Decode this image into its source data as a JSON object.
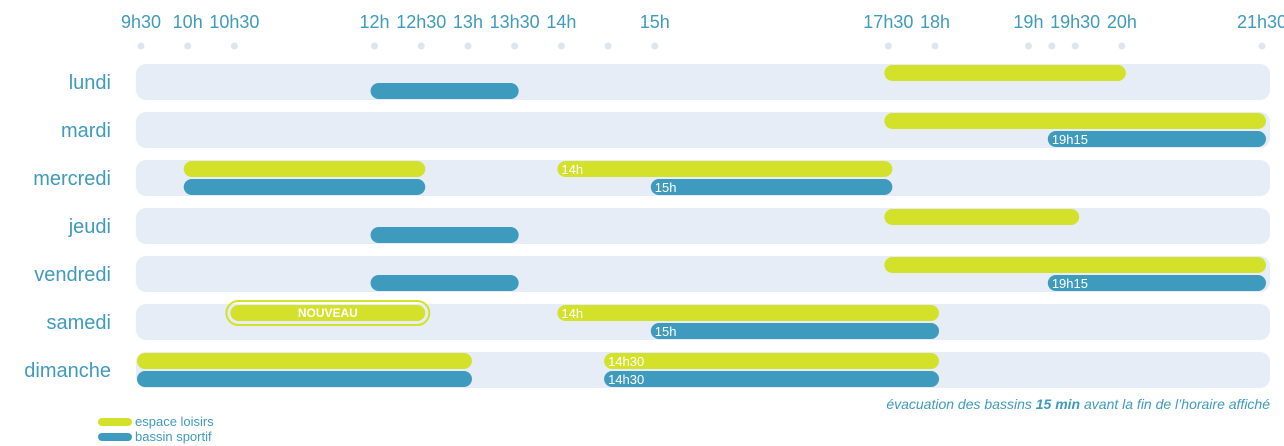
{
  "chart_data": {
    "type": "timeline",
    "x_ticks": [
      "9h30",
      "10h",
      "10h30",
      "12h",
      "12h30",
      "13h",
      "13h30",
      "14h",
      "15h",
      "17h30",
      "18h",
      "19h",
      "19h30",
      "20h",
      "21h30"
    ],
    "x_range": [
      "9h30",
      "21h30"
    ],
    "days": [
      "lundi",
      "mardi",
      "mercredi",
      "jeudi",
      "vendredi",
      "samedi",
      "dimanche"
    ],
    "series": [
      {
        "name": "espace loisirs",
        "color": "#d4e12b"
      },
      {
        "name": "bassin sportif",
        "color": "#3e9bbd"
      }
    ],
    "bars": [
      {
        "day": 0,
        "series": 0,
        "start": "17h30",
        "end": "20h"
      },
      {
        "day": 0,
        "series": 1,
        "start": "12h",
        "end": "13h30"
      },
      {
        "day": 1,
        "series": 0,
        "start": "17h30",
        "end": "21h30"
      },
      {
        "day": 1,
        "series": 1,
        "start": "19h15",
        "end": "21h30",
        "label": "19h15"
      },
      {
        "day": 2,
        "series": 0,
        "start": "10h",
        "end": "12h30"
      },
      {
        "day": 2,
        "series": 1,
        "start": "10h",
        "end": "12h30"
      },
      {
        "day": 2,
        "series": 0,
        "start": "14h",
        "end": "17h30",
        "label": "14h"
      },
      {
        "day": 2,
        "series": 1,
        "start": "15h",
        "end": "17h30",
        "label": "15h"
      },
      {
        "day": 3,
        "series": 0,
        "start": "17h30",
        "end": "19h30"
      },
      {
        "day": 3,
        "series": 1,
        "start": "12h",
        "end": "13h30"
      },
      {
        "day": 4,
        "series": 0,
        "start": "17h30",
        "end": "21h30"
      },
      {
        "day": 4,
        "series": 1,
        "start": "12h",
        "end": "13h30"
      },
      {
        "day": 4,
        "series": 1,
        "start": "19h15",
        "end": "21h30",
        "label": "19h15"
      },
      {
        "day": 5,
        "series": 0,
        "start": "10h30",
        "end": "12h30",
        "label": "NOUVEAU",
        "highlight": true
      },
      {
        "day": 5,
        "series": 0,
        "start": "14h",
        "end": "18h",
        "label": "14h"
      },
      {
        "day": 5,
        "series": 1,
        "start": "15h",
        "end": "18h",
        "label": "15h"
      },
      {
        "day": 6,
        "series": 0,
        "start": "9h30",
        "end": "13h"
      },
      {
        "day": 6,
        "series": 1,
        "start": "9h30",
        "end": "13h"
      },
      {
        "day": 6,
        "series": 0,
        "start": "14h30",
        "end": "18h",
        "label": "14h30"
      },
      {
        "day": 6,
        "series": 1,
        "start": "14h30",
        "end": "18h",
        "label": "14h30"
      }
    ]
  },
  "note": {
    "prefix": "évacuation des bassins ",
    "bold": "15 min",
    "suffix": " avant la fin de l’horaire affiché"
  },
  "legend": [
    {
      "label": "espace loisirs",
      "color": "#d4e12b"
    },
    {
      "label": "bassin sportif",
      "color": "#3e9bbd"
    }
  ]
}
